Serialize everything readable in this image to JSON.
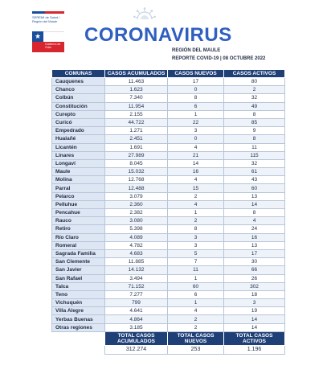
{
  "logo": {
    "ministry_text": "SEREMI de Salud / Región del Maule",
    "government_text": "Gobierno de Chile",
    "star_glyph": "★"
  },
  "header": {
    "title": "CORONAVIRUS",
    "region": "REGIÓN DEL MAULE",
    "report": "REPORTE COVID-19 | 08 OCTUBRE 2022"
  },
  "table": {
    "headers": [
      "COMUNAS",
      "CASOS ACUMULADOS",
      "CASOS NUEVOS",
      "CASOS ACTIVOS"
    ],
    "rows": [
      [
        "Cauquenes",
        "11.463",
        "17",
        "80"
      ],
      [
        "Chanco",
        "1.623",
        "0",
        "2"
      ],
      [
        "Colbún",
        "7.340",
        "8",
        "32"
      ],
      [
        "Constitución",
        "11.954",
        "6",
        "49"
      ],
      [
        "Curepto",
        "2.155",
        "1",
        "8"
      ],
      [
        "Curicó",
        "44.722",
        "22",
        "85"
      ],
      [
        "Empedrado",
        "1.271",
        "3",
        "9"
      ],
      [
        "Hualañé",
        "2.451",
        "0",
        "8"
      ],
      [
        "Licantén",
        "1.691",
        "4",
        "11"
      ],
      [
        "Linares",
        "27.989",
        "21",
        "115"
      ],
      [
        "Longaví",
        "8.045",
        "14",
        "32"
      ],
      [
        "Maule",
        "15.032",
        "16",
        "61"
      ],
      [
        "Molina",
        "12.768",
        "4",
        "43"
      ],
      [
        "Parral",
        "12.488",
        "15",
        "60"
      ],
      [
        "Pelarco",
        "3.079",
        "2",
        "13"
      ],
      [
        "Pelluhue",
        "2.360",
        "4",
        "14"
      ],
      [
        "Pencahue",
        "2.382",
        "1",
        "8"
      ],
      [
        "Rauco",
        "3.080",
        "2",
        "4"
      ],
      [
        "Retiro",
        "5.398",
        "8",
        "24"
      ],
      [
        "Río Claro",
        "4.089",
        "3",
        "16"
      ],
      [
        "Romeral",
        "4.782",
        "3",
        "13"
      ],
      [
        "Sagrada Familia",
        "4.683",
        "5",
        "17"
      ],
      [
        "San Clemente",
        "11.885",
        "7",
        "30"
      ],
      [
        "San Javier",
        "14.132",
        "11",
        "66"
      ],
      [
        "San Rafael",
        "3.494",
        "1",
        "26"
      ],
      [
        "Talca",
        "71.152",
        "60",
        "302"
      ],
      [
        "Teno",
        "7.277",
        "6",
        "18"
      ],
      [
        "Vichuquén",
        "799",
        "1",
        "3"
      ],
      [
        "Villa Alegre",
        "4.641",
        "4",
        "19"
      ],
      [
        "Yerbas Buenas",
        "4.864",
        "2",
        "14"
      ],
      [
        "Otras regiones",
        "3.185",
        "2",
        "14"
      ]
    ],
    "totals_headers": [
      "TOTAL CASOS ACUMULADOS",
      "TOTAL CASOS NUEVOS",
      "TOTAL CASOS ACTIVOS"
    ],
    "totals": [
      "312.274",
      "253",
      "1.196"
    ]
  }
}
